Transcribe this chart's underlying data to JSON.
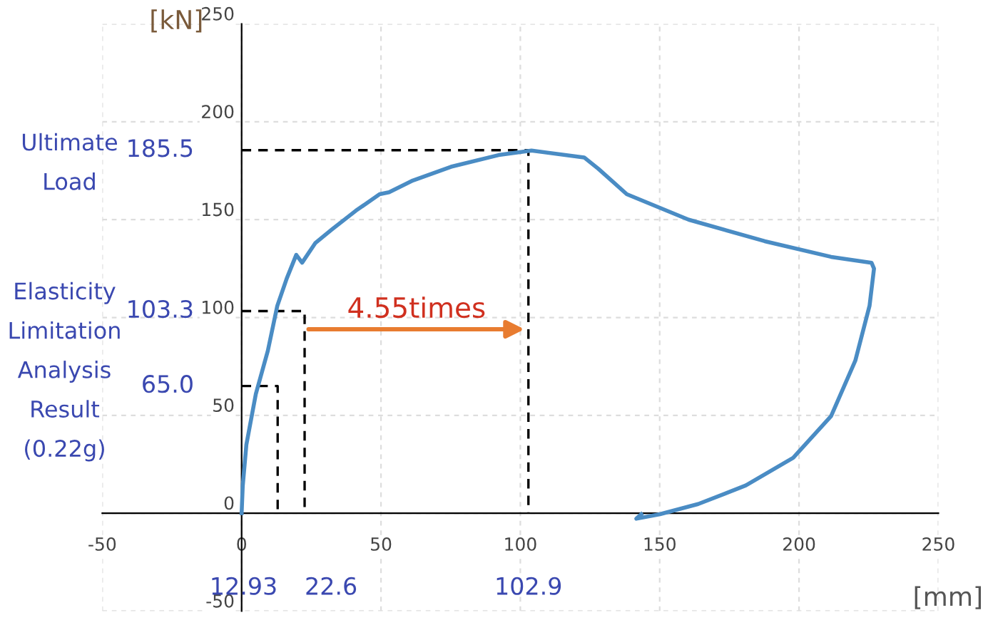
{
  "chart_data": {
    "type": "line",
    "xlabel": "[mm]",
    "ylabel": "[kN]",
    "x": [
      0,
      0.4,
      1.7,
      5.1,
      9.4,
      12.8,
      16.2,
      19.6,
      21.7,
      26.4,
      32.4,
      41,
      49.5,
      52.9,
      61.4,
      75.1,
      92.2,
      104,
      122.9,
      128,
      138.2,
      160.4,
      187.7,
      211.5,
      226,
      226.9,
      225.3,
      220.2,
      211.5,
      197.9,
      180.9,
      163.8,
      150.1,
      141.6,
      143.4
    ],
    "series": [
      {
        "color": "#4a8cc4",
        "values": [
          0,
          14,
          35,
          61,
          83,
          106,
          120,
          132,
          128,
          138,
          145,
          154.6,
          163,
          164,
          170,
          177,
          183,
          185.3,
          181.8,
          176,
          163,
          150,
          139,
          131,
          128,
          125,
          106,
          78,
          49.6,
          28.3,
          14.2,
          4.7,
          -0.5,
          -2.8,
          -0.5
        ]
      },
      {
        "color": "#000000",
        "line_style": "dashed",
        "x": [
          0,
          12.93,
          12.93
        ],
        "values": [
          65.0,
          65.0,
          0
        ]
      },
      {
        "color": "#000000",
        "line_style": "dashed",
        "x": [
          0,
          22.6,
          22.6
        ],
        "values": [
          103.3,
          103.3,
          0
        ]
      },
      {
        "color": "#000000",
        "line_style": "dashed",
        "x": [
          0,
          102.9,
          102.9
        ],
        "values": [
          185.5,
          185.5,
          0
        ]
      }
    ],
    "xlim": [
      -50,
      250
    ],
    "ylim": [
      -50,
      250
    ],
    "xticks": [
      -50,
      0,
      50,
      100,
      150,
      200,
      250
    ],
    "yticks": [
      -50,
      0,
      50,
      100,
      150,
      200,
      250
    ],
    "grid": true,
    "line_style": "solid",
    "marker": "none",
    "annotations": [
      "Ultimate\nLoad",
      "Elasticity\nLimitation\nAnalysis\nResult\n(0.22g)",
      "4.55times",
      {
        "text": "12.93",
        "x": 12.93,
        "y": 0
      },
      {
        "text": "22.6",
        "x": 22.6,
        "y": 0
      },
      {
        "text": "102.9",
        "x": 102.9,
        "y": 0
      },
      {
        "text": "65.0",
        "x": 0,
        "y": 65.0
      },
      {
        "text": "103.3",
        "x": 0,
        "y": 103.3
      },
      {
        "text": "185.5",
        "x": 0,
        "y": 185.5
      }
    ]
  }
}
